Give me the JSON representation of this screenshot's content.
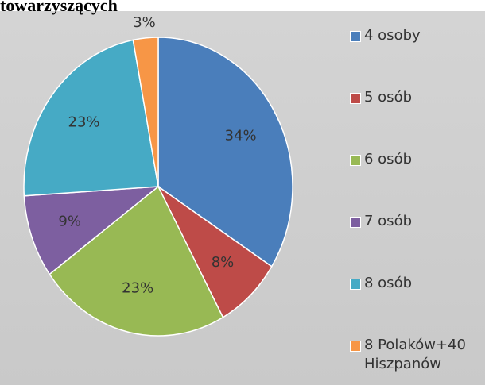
{
  "chart_data": {
    "type": "pie",
    "title": "towarzyszących",
    "categories": [
      "4 osoby",
      "5 osób",
      "6 osób",
      "7 osób",
      "8 osób",
      "8 Polaków+40 Hiszpanów"
    ],
    "values": [
      34,
      8,
      23,
      9,
      23,
      3
    ],
    "value_labels": [
      "34%",
      "8%",
      "23%",
      "9%",
      "23%",
      "3%"
    ],
    "colors": [
      "#4a7ebb",
      "#be4b48",
      "#98b954",
      "#7d5fa0",
      "#46aac5",
      "#f79646"
    ],
    "legend": "right"
  }
}
